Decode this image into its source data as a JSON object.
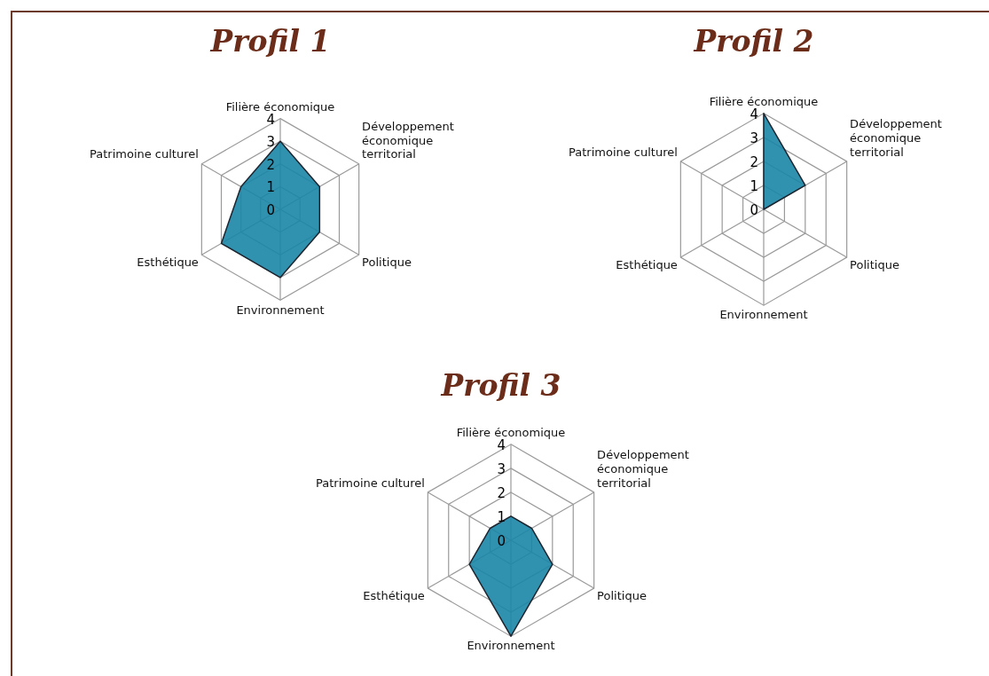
{
  "chart_data": [
    {
      "type": "radar",
      "title": "Profil 1",
      "categories": [
        "Filière économique",
        "Développement économique territorial",
        "Politique",
        "Environnement",
        "Esthétique",
        "Patrimoine culturel"
      ],
      "series": [
        {
          "color": "#1a86a6",
          "values": [
            3,
            2,
            2,
            3,
            3,
            2
          ]
        }
      ],
      "ylim": [
        0,
        4
      ],
      "yticks": [
        0,
        1,
        2,
        3,
        4
      ],
      "grid": true,
      "legend": false
    },
    {
      "type": "radar",
      "title": "Profil 2",
      "categories": [
        "Filière économique",
        "Développement économique territorial",
        "Politique",
        "Environnement",
        "Esthétique",
        "Patrimoine culturel"
      ],
      "series": [
        {
          "color": "#1a86a6",
          "values": [
            4,
            2,
            0,
            0,
            0,
            0
          ]
        }
      ],
      "ylim": [
        0,
        4
      ],
      "yticks": [
        0,
        1,
        2,
        3,
        4
      ],
      "grid": true,
      "legend": false
    },
    {
      "type": "radar",
      "title": "Profil 3",
      "categories": [
        "Filière économique",
        "Développement économique territorial",
        "Politique",
        "Environnement",
        "Esthétique",
        "Patrimoine culturel"
      ],
      "series": [
        {
          "color": "#1a86a6",
          "values": [
            1,
            1,
            2,
            4,
            2,
            1
          ]
        }
      ],
      "ylim": [
        0,
        4
      ],
      "yticks": [
        0,
        1,
        2,
        3,
        4
      ],
      "grid": true,
      "legend": false
    }
  ]
}
